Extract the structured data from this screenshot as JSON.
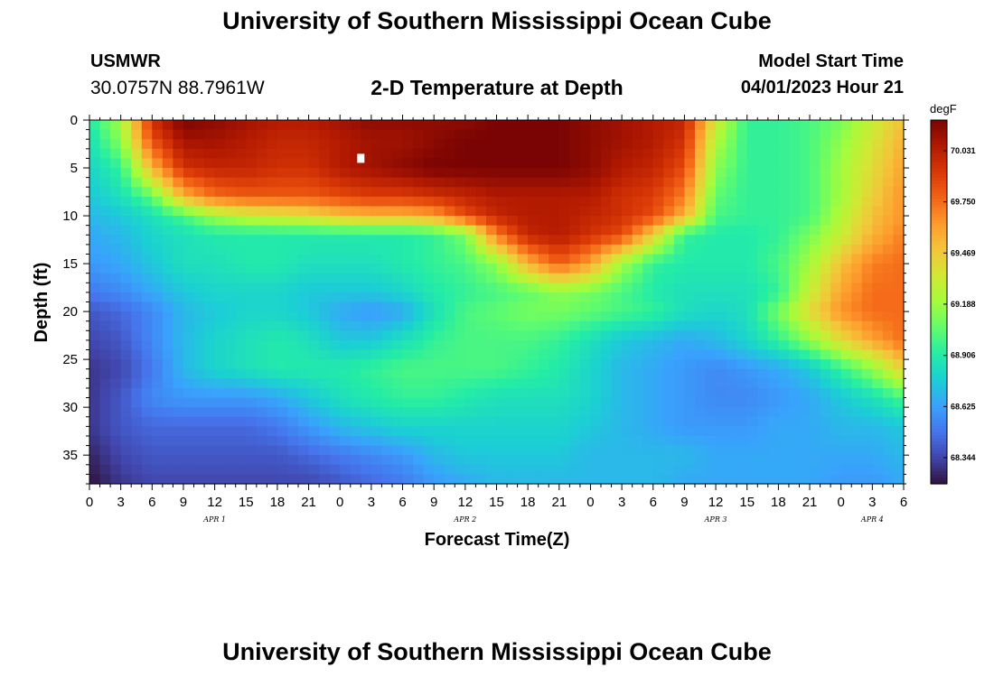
{
  "header": {
    "title": "University of Southern Mississippi Ocean Cube",
    "station": "USMWR",
    "coords": "30.0757N  88.7961W",
    "subtitle": "2-D Temperature at Depth",
    "model_start_label": "Model Start Time",
    "model_start_value": "04/01/2023 Hour 21"
  },
  "footer": {
    "title": "University of Southern Mississippi Ocean Cube"
  },
  "chart_data": {
    "type": "heatmap",
    "title": "2-D Temperature at Depth",
    "xlabel": "Forecast Time(Z)",
    "ylabel": "Depth (ft)",
    "x_tick_labels": [
      "0",
      "3",
      "6",
      "9",
      "12",
      "15",
      "18",
      "21",
      "0",
      "3",
      "6",
      "9",
      "12",
      "15",
      "18",
      "21",
      "0",
      "3",
      "6",
      "9",
      "12",
      "15",
      "18",
      "21",
      "0",
      "3",
      "6"
    ],
    "day_labels": [
      {
        "label": "APR 1",
        "at_hour": 12
      },
      {
        "label": "APR 2",
        "at_hour": 36
      },
      {
        "label": "APR 3",
        "at_hour": 60
      },
      {
        "label": "APR 4",
        "at_hour": 75
      }
    ],
    "x_range_hours": [
      0,
      78
    ],
    "y_tick_labels": [
      "0",
      "5",
      "10",
      "15",
      "20",
      "25",
      "30",
      "35"
    ],
    "y_ticks": [
      0,
      5,
      10,
      15,
      20,
      25,
      30,
      35
    ],
    "ylim": [
      0,
      38
    ],
    "y_inverted": true,
    "colorbar": {
      "units": "degF",
      "range": [
        68.2,
        70.2
      ],
      "tick_values": [
        70.031,
        69.75,
        69.469,
        69.188,
        68.906,
        68.625,
        68.344
      ],
      "tick_labels": [
        "70.031",
        "69.750",
        "69.469",
        "69.188",
        "68.906",
        "68.625",
        "68.344"
      ],
      "colormap": [
        "#30123b",
        "#4145ab",
        "#4675ed",
        "#39a2fc",
        "#1bcfd4",
        "#24eca6",
        "#61fc6c",
        "#a4fc3b",
        "#d1e834",
        "#f3c63a",
        "#fe9b2d",
        "#f36315",
        "#d93806",
        "#b11901",
        "#7a0403"
      ]
    },
    "marker": {
      "hour": 26,
      "depth": 4
    },
    "control_points": {
      "hours": [
        0,
        3,
        6,
        9,
        12,
        15,
        18,
        21,
        24,
        27,
        30,
        33,
        36,
        39,
        42,
        45,
        48,
        51,
        54,
        57,
        60,
        63,
        66,
        69,
        72,
        75,
        78
      ],
      "depths_ft": [
        0,
        2,
        5,
        8,
        10,
        12,
        15,
        18,
        20,
        23,
        26,
        29,
        32,
        35,
        38
      ],
      "temperature_degF": [
        [
          68.9,
          69.2,
          69.95,
          70.2,
          70.15,
          70.1,
          70.05,
          70.05,
          70.1,
          70.15,
          70.15,
          70.15,
          70.15,
          70.2,
          70.2,
          70.2,
          70.15,
          70.1,
          70.05,
          70.0,
          69.35,
          68.95,
          68.95,
          69.0,
          69.1,
          69.3,
          69.5
        ],
        [
          68.85,
          69.15,
          69.85,
          70.1,
          70.1,
          70.05,
          70.0,
          70.0,
          70.05,
          70.1,
          70.1,
          70.15,
          70.2,
          70.2,
          70.2,
          70.2,
          70.15,
          70.1,
          70.05,
          69.95,
          69.25,
          68.95,
          68.95,
          69.0,
          69.15,
          69.35,
          69.55
        ],
        [
          68.8,
          68.95,
          69.55,
          69.95,
          70.0,
          70.0,
          69.95,
          69.95,
          70.05,
          70.1,
          70.15,
          70.2,
          70.2,
          70.2,
          70.2,
          70.2,
          70.15,
          70.05,
          70.0,
          69.85,
          69.15,
          68.95,
          68.95,
          69.0,
          69.2,
          69.4,
          69.6
        ],
        [
          68.75,
          68.85,
          69.05,
          69.55,
          69.75,
          69.8,
          69.8,
          69.8,
          69.85,
          69.9,
          69.9,
          69.95,
          70.0,
          70.05,
          70.05,
          70.05,
          70.05,
          69.95,
          69.9,
          69.7,
          69.05,
          68.95,
          68.95,
          69.0,
          69.2,
          69.45,
          69.65
        ],
        [
          68.7,
          68.75,
          68.85,
          69.0,
          69.2,
          69.3,
          69.35,
          69.4,
          69.5,
          69.55,
          69.55,
          69.6,
          69.85,
          70.0,
          70.05,
          70.05,
          70.0,
          69.95,
          69.85,
          69.55,
          69.0,
          68.95,
          68.95,
          69.0,
          69.25,
          69.5,
          69.65
        ],
        [
          68.65,
          68.7,
          68.8,
          68.85,
          68.9,
          68.9,
          68.9,
          68.9,
          68.9,
          68.9,
          68.9,
          68.95,
          69.1,
          69.7,
          70.0,
          70.05,
          69.95,
          69.85,
          69.45,
          68.95,
          68.9,
          68.9,
          68.95,
          69.1,
          69.3,
          69.55,
          69.7
        ],
        [
          68.6,
          68.65,
          68.75,
          68.85,
          68.85,
          68.9,
          68.9,
          68.85,
          68.85,
          68.85,
          68.9,
          68.95,
          69.0,
          69.15,
          69.55,
          69.8,
          69.6,
          69.2,
          68.95,
          68.9,
          68.9,
          68.9,
          69.0,
          69.2,
          69.5,
          69.7,
          69.75
        ],
        [
          68.5,
          68.55,
          68.65,
          68.75,
          68.8,
          68.8,
          68.8,
          68.75,
          68.75,
          68.75,
          68.8,
          68.9,
          68.95,
          69.0,
          69.05,
          69.15,
          69.1,
          69.0,
          68.9,
          68.85,
          68.85,
          68.85,
          68.95,
          69.3,
          69.6,
          69.75,
          69.75
        ],
        [
          68.4,
          68.45,
          68.55,
          68.7,
          68.75,
          68.8,
          68.8,
          68.75,
          68.65,
          68.6,
          68.65,
          68.85,
          69.0,
          69.05,
          69.1,
          69.1,
          69.05,
          69.0,
          68.95,
          68.85,
          68.8,
          68.85,
          69.1,
          69.4,
          69.65,
          69.75,
          69.75
        ],
        [
          68.35,
          68.4,
          68.55,
          68.7,
          68.8,
          68.85,
          68.9,
          68.85,
          68.75,
          68.75,
          68.85,
          68.95,
          69.0,
          69.0,
          69.0,
          68.95,
          68.85,
          68.75,
          68.7,
          68.65,
          68.7,
          68.8,
          68.95,
          69.15,
          69.4,
          69.6,
          69.75
        ],
        [
          68.3,
          68.35,
          68.5,
          68.7,
          68.8,
          68.85,
          68.9,
          68.9,
          68.9,
          68.95,
          69.0,
          69.0,
          69.0,
          69.0,
          68.95,
          68.9,
          68.8,
          68.7,
          68.65,
          68.6,
          68.55,
          68.6,
          68.65,
          68.75,
          68.95,
          69.15,
          69.45
        ],
        [
          68.3,
          68.4,
          68.55,
          68.6,
          68.6,
          68.6,
          68.65,
          68.75,
          68.85,
          68.9,
          68.95,
          68.95,
          68.9,
          68.85,
          68.85,
          68.85,
          68.8,
          68.7,
          68.65,
          68.6,
          68.55,
          68.55,
          68.6,
          68.65,
          68.75,
          68.85,
          69.0
        ],
        [
          68.3,
          68.4,
          68.45,
          68.45,
          68.45,
          68.45,
          68.5,
          68.6,
          68.7,
          68.75,
          68.8,
          68.8,
          68.8,
          68.8,
          68.8,
          68.8,
          68.75,
          68.7,
          68.65,
          68.6,
          68.6,
          68.6,
          68.65,
          68.65,
          68.7,
          68.7,
          68.75
        ],
        [
          68.25,
          68.35,
          68.4,
          68.4,
          68.4,
          68.4,
          68.4,
          68.45,
          68.5,
          68.55,
          68.6,
          68.7,
          68.75,
          68.75,
          68.75,
          68.75,
          68.7,
          68.7,
          68.7,
          68.7,
          68.65,
          68.65,
          68.65,
          68.65,
          68.65,
          68.65,
          68.7
        ],
        [
          68.2,
          68.3,
          68.35,
          68.35,
          68.35,
          68.35,
          68.35,
          68.35,
          68.4,
          68.45,
          68.5,
          68.6,
          68.65,
          68.7,
          68.7,
          68.7,
          68.7,
          68.7,
          68.7,
          68.65,
          68.65,
          68.65,
          68.65,
          68.65,
          68.6,
          68.6,
          68.65
        ]
      ]
    }
  }
}
